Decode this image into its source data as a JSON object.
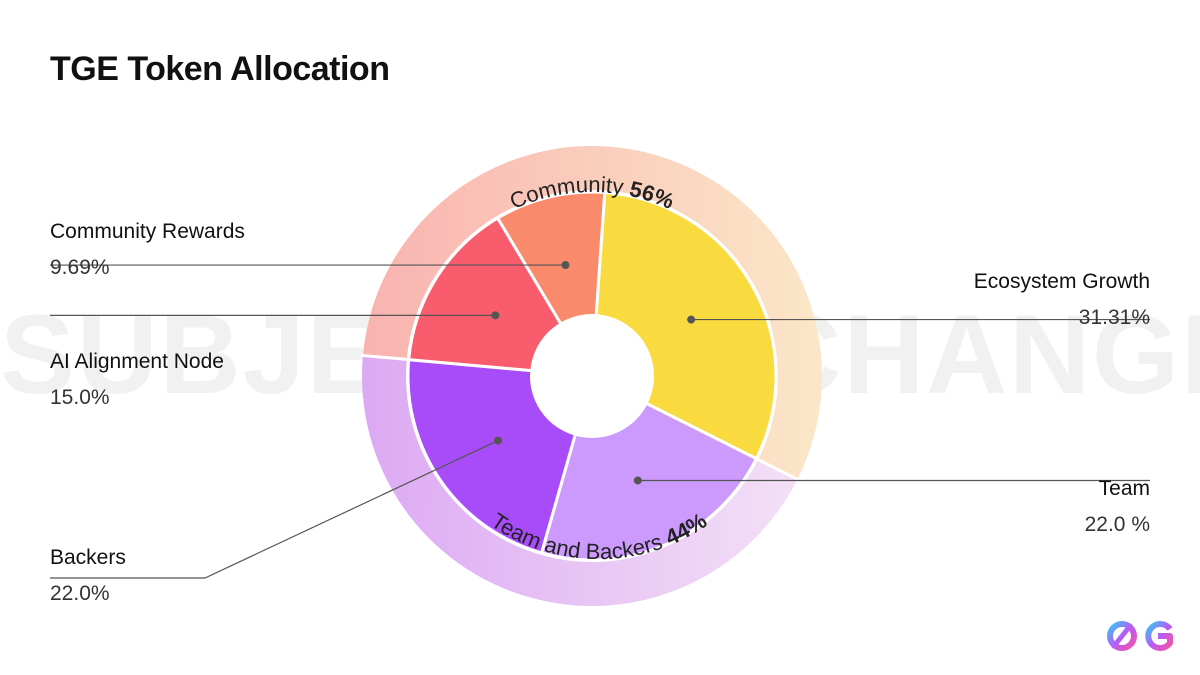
{
  "title": "TGE Token Allocation",
  "watermark": "SUBJECT TO CHANGE",
  "chart_data": {
    "type": "pie",
    "title": "TGE Token Allocation",
    "style": "donut-with-outer-group-ring",
    "slices": [
      {
        "label": "Community Rewards",
        "value": 9.69,
        "display": "9.69%",
        "color": "#fa8a6c"
      },
      {
        "label": "Ecosystem Growth",
        "value": 31.31,
        "display": "31.31%",
        "color": "#fadb3f"
      },
      {
        "label": "Team",
        "value": 22.0,
        "display": "22.0 %",
        "color": "#cc99fc"
      },
      {
        "label": "Backers",
        "value": 22.0,
        "display": "22.0%",
        "color": "#a84cfa"
      },
      {
        "label": "AI Alignment Node",
        "value": 15.0,
        "display": "15.0%",
        "color": "#f95c6c"
      }
    ],
    "groups": [
      {
        "name": "Community",
        "value": 56,
        "display": "56%",
        "members": [
          "AI Alignment Node",
          "Community Rewards",
          "Ecosystem Growth"
        ]
      },
      {
        "name": "Team and Backers",
        "value": 44,
        "display": "44%",
        "members": [
          "Team",
          "Backers"
        ]
      }
    ]
  },
  "colors": {
    "ring_community_start": "#f9b8b4",
    "ring_community_end": "#fbe5c6",
    "ring_team_start": "#f2d9f7",
    "ring_team_end": "#d8a2f0",
    "leader": "#555555"
  },
  "logo": {
    "icon": "0g-logo-icon"
  }
}
